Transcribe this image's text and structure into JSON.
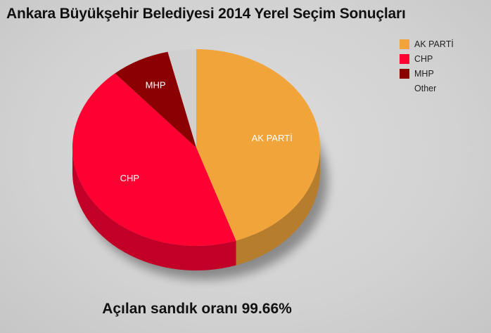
{
  "title": "Ankara Büyükşehir Belediyesi 2014 Yerel Seçim Sonuçları",
  "footer": "Açılan sandık oranı 99.66%",
  "legend": [
    {
      "label": "AK PARTİ",
      "color": "#f0a43a"
    },
    {
      "label": "CHP",
      "color": "#ff0033"
    },
    {
      "label": "MHP",
      "color": "#8b0000"
    },
    {
      "label": "Other",
      "color": "#d0d0d0"
    }
  ],
  "chart_data": {
    "type": "pie",
    "title": "Ankara Büyükşehir Belediyesi 2014 Yerel Seçim Sonuçları",
    "subtitle": "Açılan sandık oranı 99.66%",
    "categories": [
      "AK PARTİ",
      "CHP",
      "MHP",
      "Other"
    ],
    "values": [
      44.8,
      43.8,
      7.7,
      3.7
    ],
    "colors": [
      "#f0a43a",
      "#ff0033",
      "#8b0000",
      "#d0d0d0"
    ],
    "slice_labels": [
      "AK PARTİ",
      "CHP",
      "MHP",
      ""
    ],
    "style": "3d",
    "legend_position": "top-right"
  }
}
